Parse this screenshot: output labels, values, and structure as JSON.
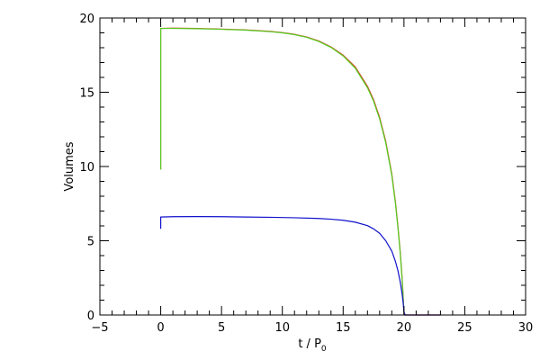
{
  "chart_data": {
    "type": "line",
    "title": "",
    "xlabel": {
      "main": "t / P",
      "sub": "0"
    },
    "ylabel": "Volumes",
    "xlim": [
      -5,
      30
    ],
    "ylim": [
      0,
      20
    ],
    "xticks": [
      -5,
      0,
      5,
      10,
      15,
      20,
      25,
      30
    ],
    "yticks": [
      0,
      5,
      10,
      15,
      20
    ],
    "x_minor_step": 1,
    "y_minor_step": 1,
    "grid": false,
    "legend": "none",
    "series": [
      {
        "color": "#d94020",
        "points": [
          [
            0,
            9.8
          ],
          [
            0,
            19.3
          ],
          [
            1,
            19.32
          ],
          [
            3,
            19.3
          ],
          [
            5,
            19.25
          ],
          [
            7,
            19.2
          ],
          [
            9,
            19.1
          ],
          [
            10,
            19.02
          ],
          [
            11,
            18.9
          ],
          [
            12,
            18.72
          ],
          [
            13,
            18.45
          ],
          [
            14,
            18.05
          ],
          [
            15,
            17.5
          ],
          [
            16,
            16.7
          ],
          [
            17,
            15.4
          ],
          [
            17.5,
            14.5
          ],
          [
            18,
            13.3
          ],
          [
            18.5,
            11.7
          ],
          [
            19,
            9.5
          ],
          [
            19.3,
            7.6
          ],
          [
            19.5,
            6.0
          ],
          [
            19.7,
            4.2
          ],
          [
            19.85,
            2.5
          ],
          [
            19.95,
            1.0
          ],
          [
            20.0,
            0.1
          ],
          [
            20.05,
            0.0
          ],
          [
            23,
            0.0
          ]
        ]
      },
      {
        "color": "#55cc22",
        "points": [
          [
            0,
            9.8
          ],
          [
            0,
            19.3
          ],
          [
            1,
            19.3
          ],
          [
            3,
            19.28
          ],
          [
            5,
            19.24
          ],
          [
            7,
            19.18
          ],
          [
            9,
            19.08
          ],
          [
            10,
            19.0
          ],
          [
            11,
            18.88
          ],
          [
            12,
            18.7
          ],
          [
            13,
            18.42
          ],
          [
            14,
            18.02
          ],
          [
            15,
            17.45
          ],
          [
            16,
            16.62
          ],
          [
            17,
            15.3
          ],
          [
            17.5,
            14.4
          ],
          [
            18,
            13.2
          ],
          [
            18.5,
            11.6
          ],
          [
            19,
            9.4
          ],
          [
            19.3,
            7.5
          ],
          [
            19.5,
            5.9
          ],
          [
            19.7,
            4.1
          ],
          [
            19.85,
            2.4
          ],
          [
            19.95,
            0.9
          ],
          [
            20.02,
            0.05
          ],
          [
            20.1,
            0.0
          ]
        ]
      },
      {
        "color": "#1010cc",
        "points": [
          [
            0,
            5.8
          ],
          [
            0,
            6.6
          ],
          [
            1,
            6.62
          ],
          [
            3,
            6.63
          ],
          [
            5,
            6.62
          ],
          [
            7,
            6.6
          ],
          [
            9,
            6.58
          ],
          [
            11,
            6.55
          ],
          [
            13,
            6.5
          ],
          [
            14,
            6.45
          ],
          [
            15,
            6.38
          ],
          [
            16,
            6.25
          ],
          [
            17,
            6.02
          ],
          [
            17.5,
            5.8
          ],
          [
            18,
            5.5
          ],
          [
            18.5,
            5.0
          ],
          [
            19,
            4.3
          ],
          [
            19.3,
            3.6
          ],
          [
            19.5,
            3.0
          ],
          [
            19.7,
            2.2
          ],
          [
            19.85,
            1.4
          ],
          [
            19.95,
            0.7
          ],
          [
            20.0,
            0.2
          ],
          [
            20.1,
            0.0
          ],
          [
            23,
            0.0
          ]
        ]
      }
    ]
  }
}
